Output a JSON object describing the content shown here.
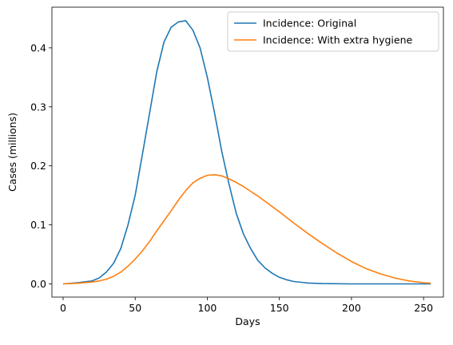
{
  "chart_data": {
    "type": "line",
    "xlabel": "Days",
    "ylabel": "Cases (millions)",
    "xlim": [
      -7.75,
      263.75
    ],
    "ylim": [
      -0.02238,
      0.46889
    ],
    "xticks": [
      0,
      50,
      100,
      150,
      200,
      250
    ],
    "yticks": [
      0.0,
      0.1,
      0.2,
      0.3,
      0.4
    ],
    "xtick_labels": [
      "0",
      "50",
      "100",
      "150",
      "200",
      "250"
    ],
    "ytick_labels": [
      "0.0",
      "0.1",
      "0.2",
      "0.3",
      "0.4"
    ],
    "legend": "top-right",
    "grid": false,
    "series": [
      {
        "name": "Incidence: Original",
        "color": "#1f77b4",
        "x": [
          0,
          10,
          20,
          25,
          30,
          35,
          40,
          45,
          50,
          55,
          60,
          65,
          70,
          75,
          80,
          85,
          90,
          95,
          100,
          105,
          110,
          115,
          120,
          125,
          130,
          135,
          140,
          145,
          150,
          155,
          160,
          170,
          180,
          200,
          220,
          255
        ],
        "y": [
          0.0,
          0.002,
          0.005,
          0.01,
          0.02,
          0.035,
          0.06,
          0.1,
          0.15,
          0.22,
          0.29,
          0.36,
          0.41,
          0.435,
          0.444,
          0.446,
          0.43,
          0.4,
          0.35,
          0.29,
          0.225,
          0.17,
          0.12,
          0.085,
          0.06,
          0.04,
          0.027,
          0.018,
          0.011,
          0.007,
          0.004,
          0.0015,
          0.0005,
          0.0,
          0.0,
          0.0
        ]
      },
      {
        "name": "Incidence: With extra hygiene",
        "color": "#ff7f0e",
        "x": [
          0,
          10,
          20,
          25,
          30,
          35,
          40,
          45,
          50,
          55,
          60,
          65,
          70,
          75,
          80,
          85,
          90,
          95,
          100,
          105,
          110,
          115,
          120,
          125,
          130,
          135,
          140,
          150,
          160,
          170,
          180,
          190,
          200,
          210,
          220,
          230,
          240,
          250,
          255
        ],
        "y": [
          0.0,
          0.001,
          0.003,
          0.005,
          0.008,
          0.013,
          0.02,
          0.03,
          0.042,
          0.056,
          0.072,
          0.09,
          0.107,
          0.124,
          0.142,
          0.158,
          0.171,
          0.179,
          0.184,
          0.185,
          0.183,
          0.178,
          0.172,
          0.165,
          0.157,
          0.149,
          0.14,
          0.122,
          0.103,
          0.085,
          0.068,
          0.052,
          0.038,
          0.026,
          0.017,
          0.01,
          0.005,
          0.002,
          0.001
        ]
      }
    ]
  }
}
